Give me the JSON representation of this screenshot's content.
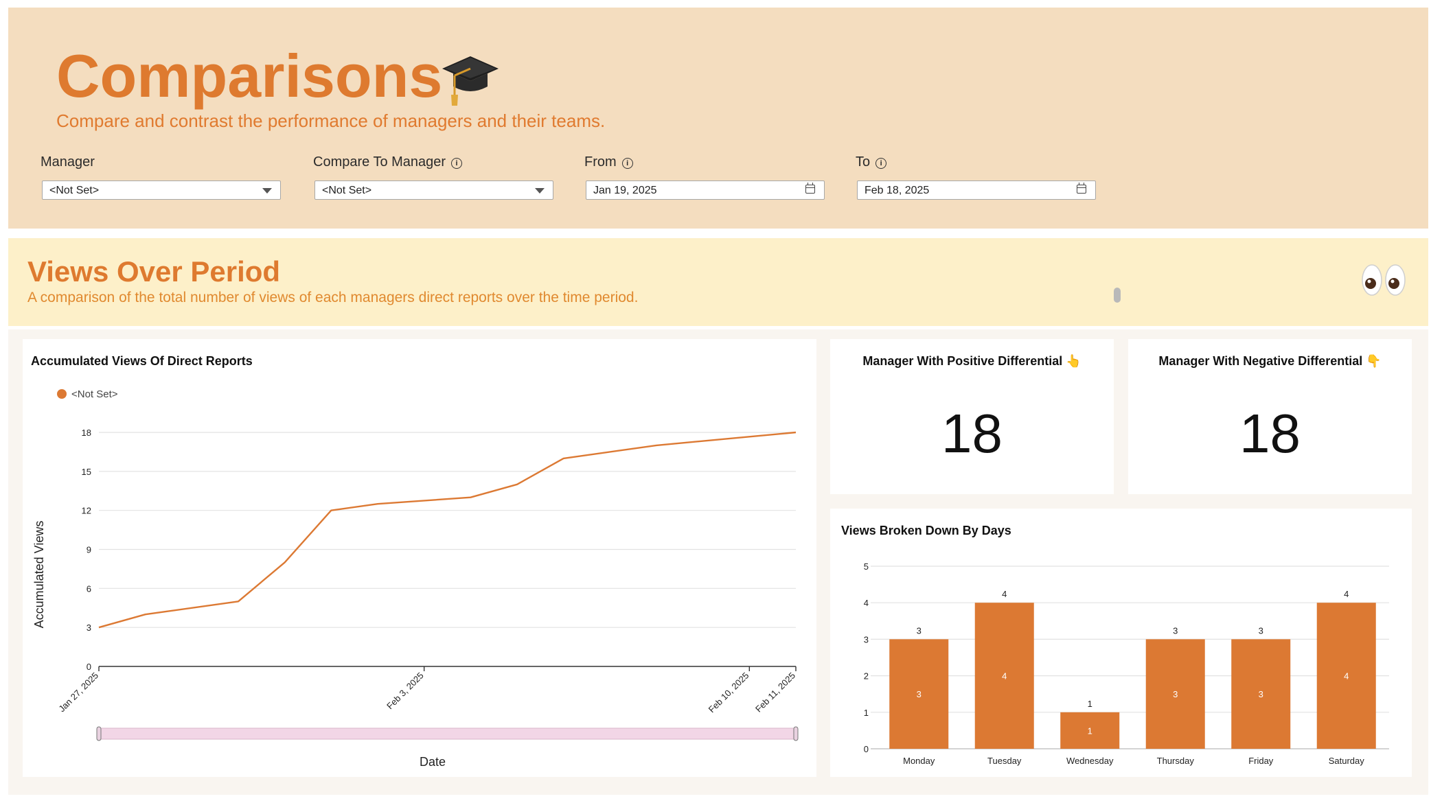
{
  "header": {
    "title": "Comparisons",
    "subtitle": "Compare and contrast the performance of managers and their teams.",
    "title_icon": "graduation-cap-icon"
  },
  "filters": {
    "manager": {
      "label": "Manager",
      "value": "<Not Set>"
    },
    "compare_to": {
      "label": "Compare To Manager",
      "value": "<Not Set>"
    },
    "from": {
      "label": "From",
      "value": "Jan 19, 2025"
    },
    "to": {
      "label": "To",
      "value": "Feb 18, 2025"
    },
    "info_glyph": "i"
  },
  "views_section": {
    "title": "Views Over Period",
    "subtitle": "A comparison of the total number of views of each managers direct reports over the time period.",
    "icon": "eyes-icon"
  },
  "line_chart": {
    "title": "Accumulated Views Of Direct Reports",
    "legend": "<Not Set>",
    "xlabel": "Date",
    "ylabel": "Accumulated Views",
    "color": "#dc7933"
  },
  "positive_card": {
    "title": "Manager With Positive Differential 👆",
    "value": "18"
  },
  "negative_card": {
    "title": "Manager With Negative Differential 👇",
    "value": "18"
  },
  "bar_chart": {
    "title": "Views Broken Down By Days",
    "color": "#dc7933"
  },
  "colors": {
    "accent": "#de7a2f",
    "header_bg": "#f4ddbf",
    "section_bg": "#fdf0c9",
    "scrollbar": "#f2d6e6"
  },
  "chart_data": [
    {
      "type": "line",
      "title": "Accumulated Views Of Direct Reports",
      "xlabel": "Date",
      "ylabel": "Accumulated Views",
      "x": [
        "2025-01-27",
        "2025-01-28",
        "2025-01-30",
        "2025-01-31",
        "2025-02-01",
        "2025-02-02",
        "2025-02-04",
        "2025-02-05",
        "2025-02-06",
        "2025-02-08",
        "2025-02-11"
      ],
      "series": [
        {
          "name": "<Not Set>",
          "values": [
            3,
            4,
            5,
            8,
            12,
            12.5,
            13,
            14,
            16,
            17,
            18
          ]
        }
      ],
      "xticks": [
        "Jan 27, 2025",
        "Feb 3, 2025",
        "Feb 10, 2025",
        "Feb 11, 2025"
      ],
      "yticks": [
        0,
        3,
        6,
        9,
        12,
        15,
        18
      ],
      "ylim": [
        0,
        18
      ],
      "grid": true,
      "legend": "top-left"
    },
    {
      "type": "bar",
      "title": "Views Broken Down By Days",
      "categories": [
        "Monday",
        "Tuesday",
        "Wednesday",
        "Thursday",
        "Friday",
        "Saturday"
      ],
      "values": [
        3,
        4,
        1,
        3,
        3,
        4
      ],
      "yticks": [
        0,
        1,
        2,
        3,
        4,
        5
      ],
      "ylim": [
        0,
        5
      ],
      "grid": true
    }
  ]
}
